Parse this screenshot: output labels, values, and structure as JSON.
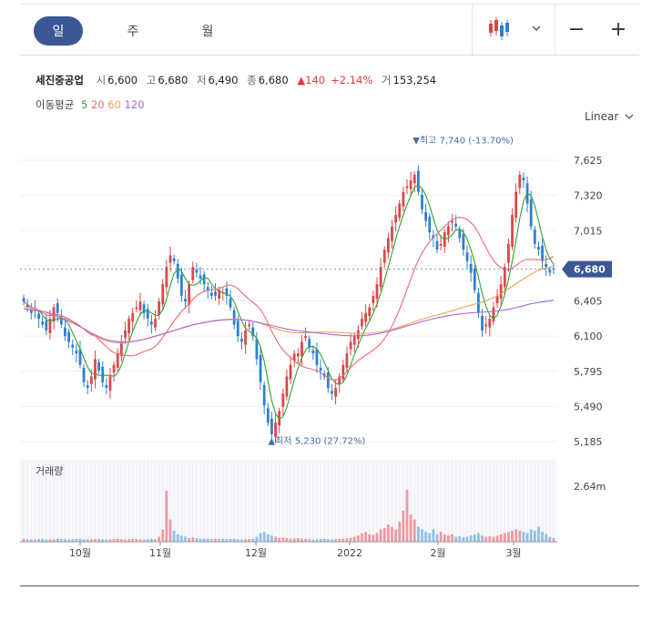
{
  "tabs": [
    {
      "label": "일",
      "active": true
    },
    {
      "label": "주",
      "active": false
    },
    {
      "label": "월",
      "active": false
    }
  ],
  "tools": {
    "linear_label": "Linear"
  },
  "info": {
    "name": "세진중공업",
    "open_label": "시",
    "open": "6,600",
    "high_label": "고",
    "high": "6,680",
    "low_label": "저",
    "low": "6,490",
    "close_label": "종",
    "close": "6,680",
    "change": "▲140",
    "change_pct": "+2.14%",
    "volume_label": "거",
    "volume": "153,254"
  },
  "ma": {
    "label": "이동평균",
    "p5": "5",
    "p20": "20",
    "p60": "60",
    "p120": "120"
  },
  "colors": {
    "up": "#d9484b",
    "down": "#2f7fd1",
    "ma5": "#2ca52c",
    "ma20": "#e86b77",
    "ma60": "#eda162",
    "ma120": "#a86ad6",
    "accent": "#3b5796"
  },
  "chart_data": {
    "type": "candlestick",
    "price_ticks": [
      "7,625",
      "7,320",
      "7,015",
      "6,710",
      "6,405",
      "6,100",
      "5,795",
      "5,490",
      "5,185"
    ],
    "ylim": [
      5185,
      7625
    ],
    "volume_label": "거래량",
    "volume_tick": "2.64m",
    "x_ticks": [
      "10월",
      "11월",
      "12월",
      "2022",
      "2월",
      "3월"
    ],
    "last_price_label": "6,680",
    "last_price": 6680,
    "high_annotation": "▼최고 7,740 (-13.70%)",
    "low_annotation": "▲최저 5,230 (27.72%)",
    "price_high": 7740,
    "price_low": 5230,
    "close_series": [
      6400,
      6350,
      6300,
      6320,
      6250,
      6200,
      6150,
      6250,
      6350,
      6300,
      6200,
      6100,
      6050,
      6000,
      5950,
      5850,
      5700,
      5650,
      5750,
      5900,
      5800,
      5700,
      5650,
      5750,
      5850,
      5950,
      6050,
      6150,
      6250,
      6300,
      6350,
      6400,
      6300,
      6250,
      6200,
      6250,
      6400,
      6550,
      6700,
      6800,
      6750,
      6600,
      6450,
      6400,
      6550,
      6700,
      6650,
      6600,
      6550,
      6500,
      6450,
      6450,
      6500,
      6480,
      6450,
      6350,
      6200,
      6100,
      6050,
      6150,
      6200,
      6100,
      5900,
      5700,
      5500,
      5350,
      5250,
      5350,
      5450,
      5600,
      5750,
      5850,
      5950,
      5950,
      6050,
      6100,
      6000,
      5950,
      5850,
      5800,
      5750,
      5650,
      5600,
      5650,
      5750,
      5850,
      5950,
      6050,
      6100,
      6150,
      6250,
      6300,
      6350,
      6450,
      6550,
      6700,
      6850,
      6950,
      7050,
      7150,
      7250,
      7350,
      7400,
      7450,
      7500,
      7350,
      7200,
      7100,
      7000,
      6950,
      6850,
      6900,
      7000,
      7050,
      7100,
      7050,
      6950,
      6850,
      6750,
      6650,
      6500,
      6300,
      6150,
      6200,
      6250,
      6350,
      6450,
      6550,
      6700,
      6900,
      7150,
      7350,
      7500,
      7450,
      7250,
      7050,
      6900,
      6850,
      6750,
      6700,
      6650,
      6680
    ],
    "volume_series": [
      0.12,
      0.1,
      0.1,
      0.09,
      0.11,
      0.12,
      0.1,
      0.09,
      0.1,
      0.12,
      0.11,
      0.1,
      0.09,
      0.1,
      0.11,
      0.12,
      0.1,
      0.09,
      0.1,
      0.11,
      0.12,
      0.1,
      0.09,
      0.1,
      0.11,
      0.12,
      0.1,
      0.09,
      0.1,
      0.12,
      0.11,
      0.1,
      0.09,
      0.1,
      0.12,
      0.1,
      0.2,
      0.5,
      2.05,
      0.9,
      0.45,
      0.3,
      0.25,
      0.2,
      0.15,
      0.18,
      0.14,
      0.12,
      0.13,
      0.12,
      0.1,
      0.11,
      0.1,
      0.12,
      0.1,
      0.11,
      0.12,
      0.1,
      0.09,
      0.1,
      0.11,
      0.12,
      0.2,
      0.35,
      0.4,
      0.3,
      0.25,
      0.2,
      0.15,
      0.18,
      0.15,
      0.12,
      0.13,
      0.14,
      0.12,
      0.11,
      0.1,
      0.09,
      0.1,
      0.11,
      0.12,
      0.1,
      0.09,
      0.1,
      0.11,
      0.12,
      0.14,
      0.16,
      0.2,
      0.25,
      0.35,
      0.4,
      0.3,
      0.28,
      0.35,
      0.5,
      0.55,
      0.7,
      0.6,
      0.5,
      0.8,
      1.25,
      2.1,
      1.1,
      0.9,
      0.6,
      0.5,
      0.4,
      0.35,
      0.5,
      0.3,
      0.4,
      0.3,
      0.25,
      0.3,
      0.2,
      0.22,
      0.18,
      0.2,
      0.25,
      0.3,
      0.35,
      0.25,
      0.2,
      0.22,
      0.2,
      0.25,
      0.3,
      0.35,
      0.4,
      0.45,
      0.5,
      0.45,
      0.4,
      0.35,
      0.5,
      0.45,
      0.6,
      0.4,
      0.3,
      0.2,
      0.15
    ]
  }
}
